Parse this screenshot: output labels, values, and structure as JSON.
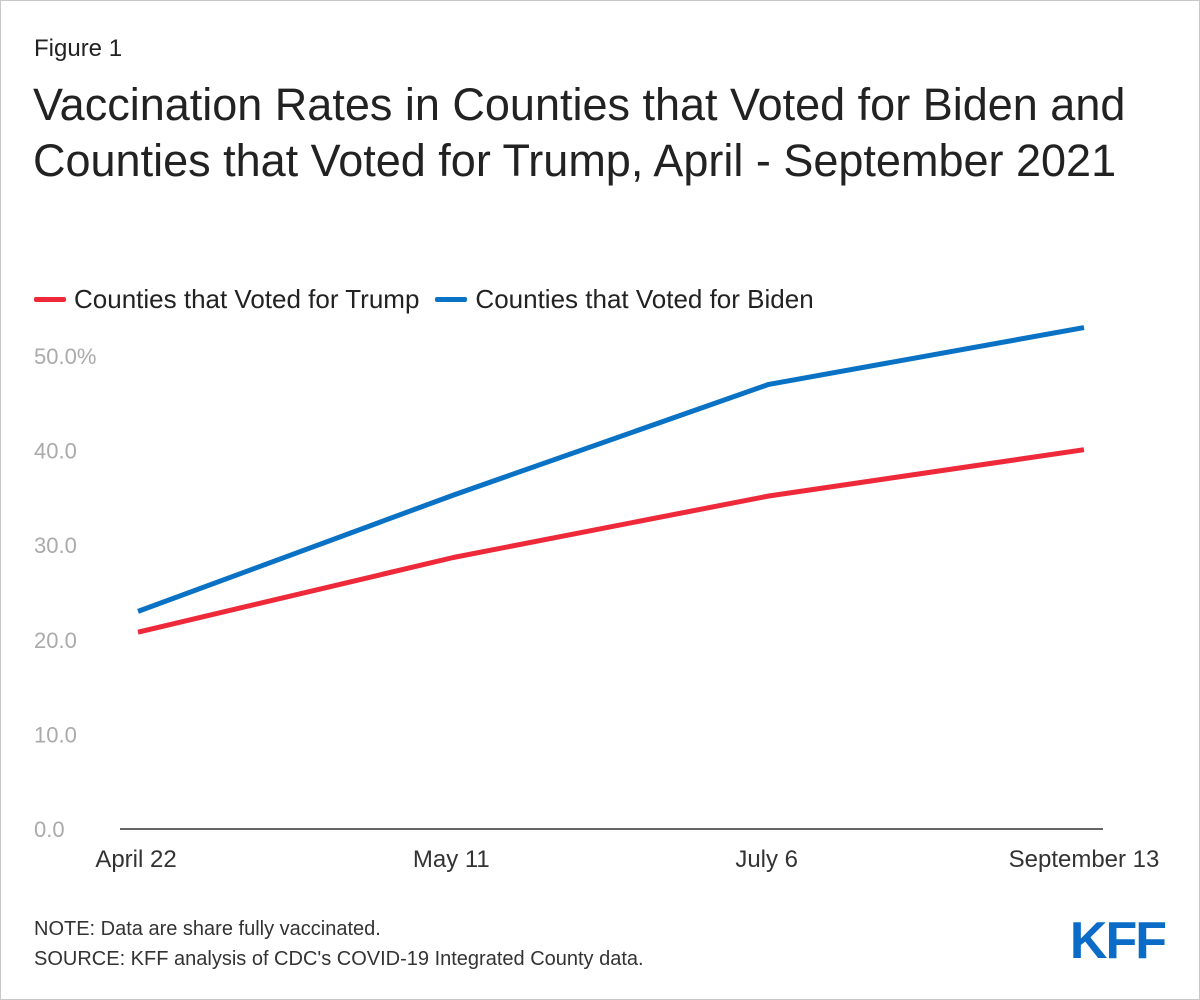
{
  "figure_label": "Figure 1",
  "title": "Vaccination Rates in Counties that Voted for Biden and Counties that Voted for Trump, April - September 2021",
  "footer": {
    "note": "NOTE: Data are share fully vaccinated.",
    "source": "SOURCE: KFF analysis of CDC's COVID-19 Integrated County data."
  },
  "logo": "KFF",
  "colors": {
    "trump": "#ee2a3a",
    "biden": "#0a72c4",
    "axis": "#333333",
    "tick_text": "#aaaaaa"
  },
  "chart_data": {
    "type": "line",
    "title": "Vaccination Rates in Counties that Voted for Biden and Counties that Voted for Trump, April - September 2021",
    "xlabel": "",
    "ylabel": "",
    "categories": [
      "April 22",
      "May 11",
      "July 6",
      "September 13"
    ],
    "y_ticks": [
      0,
      10,
      20,
      30,
      40,
      50
    ],
    "y_tick_labels": [
      "0.0",
      "10.0",
      "20.0",
      "30.0",
      "40.0",
      "50.0%"
    ],
    "ylim": [
      0,
      50
    ],
    "grid": false,
    "legend_position": "top-left",
    "series": [
      {
        "name": "Counties that Voted for Trump",
        "color": "#ee2a3a",
        "values": [
          20.8,
          28.7,
          35.2,
          40.1
        ]
      },
      {
        "name": "Counties that Voted for Biden",
        "color": "#0a72c4",
        "values": [
          23.0,
          35.3,
          47.0,
          53.0
        ]
      }
    ]
  }
}
